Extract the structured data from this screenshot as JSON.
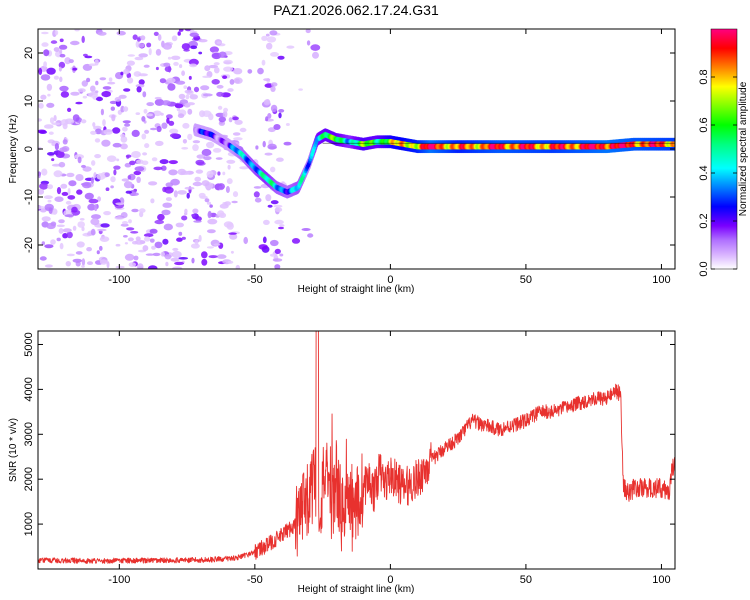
{
  "title": "PAZ1.2026.062.17.24.G31",
  "chart_data": [
    {
      "type": "heatmap",
      "xlabel": "Height of straight line (km)",
      "ylabel": "Frequency (Hz)",
      "xlim": [
        -130,
        105
      ],
      "ylim": [
        -25,
        25
      ],
      "x_ticks": [
        -100,
        -50,
        0,
        50,
        100
      ],
      "y_ticks": [
        -20,
        -10,
        0,
        10,
        20
      ],
      "colorbar": {
        "label": "Normalized spectral amplitude",
        "range": [
          0,
          1
        ],
        "ticks": [
          0.0,
          0.2,
          0.4,
          0.6,
          0.8
        ],
        "tick_labels": [
          "0.0",
          "0.2",
          "0.4",
          "0.6",
          "0.8"
        ]
      },
      "ridge": {
        "x": [
          -72,
          -66,
          -60,
          -55,
          -50,
          -46,
          -42,
          -38,
          -34,
          -30,
          -27,
          -24,
          -20,
          -15,
          -10,
          -5,
          0,
          5,
          10,
          15,
          25,
          40,
          60,
          80,
          90,
          105
        ],
        "freq": [
          4,
          3,
          1,
          -1,
          -4,
          -6,
          -8,
          -9,
          -8,
          -3,
          2,
          3,
          2,
          1.5,
          1,
          1.5,
          1.5,
          1,
          0.5,
          0.5,
          0.5,
          0.5,
          0.5,
          0.5,
          1,
          1
        ],
        "amplitude": [
          0.15,
          0.18,
          0.2,
          0.35,
          0.4,
          0.45,
          0.38,
          0.35,
          0.4,
          0.3,
          0.5,
          0.55,
          0.55,
          0.45,
          0.6,
          0.55,
          0.7,
          0.75,
          0.8,
          0.95,
          0.8,
          0.9,
          0.85,
          0.95,
          0.9,
          0.85
        ]
      },
      "noise_region_km": [
        -130,
        -25
      ]
    },
    {
      "type": "line",
      "xlabel": "Height of straight line (km)",
      "ylabel": "SNR (10 * v/v)",
      "xlim": [
        -130,
        105
      ],
      "ylim": [
        0,
        5300
      ],
      "x_ticks": [
        -100,
        -50,
        0,
        50,
        100
      ],
      "y_ticks": [
        1000,
        2000,
        3000,
        4000,
        5000
      ],
      "color": "#e8312e",
      "series": [
        {
          "name": "SNR",
          "x": [
            -130,
            -110,
            -90,
            -70,
            -60,
            -55,
            -50,
            -45,
            -40,
            -35,
            -30,
            -28,
            -26,
            -24,
            -22,
            -20,
            -18,
            -16,
            -14,
            -12,
            -10,
            -8,
            -6,
            -4,
            -2,
            0,
            5,
            10,
            15,
            20,
            25,
            30,
            35,
            40,
            45,
            50,
            55,
            60,
            65,
            70,
            75,
            80,
            83,
            84,
            85,
            86,
            88,
            90,
            95,
            100,
            103,
            104,
            105
          ],
          "y": [
            200,
            180,
            190,
            200,
            230,
            270,
            380,
            550,
            750,
            1000,
            1500,
            2100,
            1300,
            2300,
            1000,
            2100,
            1200,
            1600,
            1200,
            1500,
            1800,
            2000,
            1700,
            2200,
            1900,
            2100,
            1800,
            2000,
            2400,
            2700,
            2900,
            3300,
            3200,
            3100,
            3200,
            3300,
            3500,
            3500,
            3600,
            3700,
            3800,
            3800,
            4000,
            3900,
            3800,
            1800,
            1700,
            1800,
            1800,
            1800,
            1700,
            2300,
            2300
          ]
        }
      ]
    }
  ]
}
